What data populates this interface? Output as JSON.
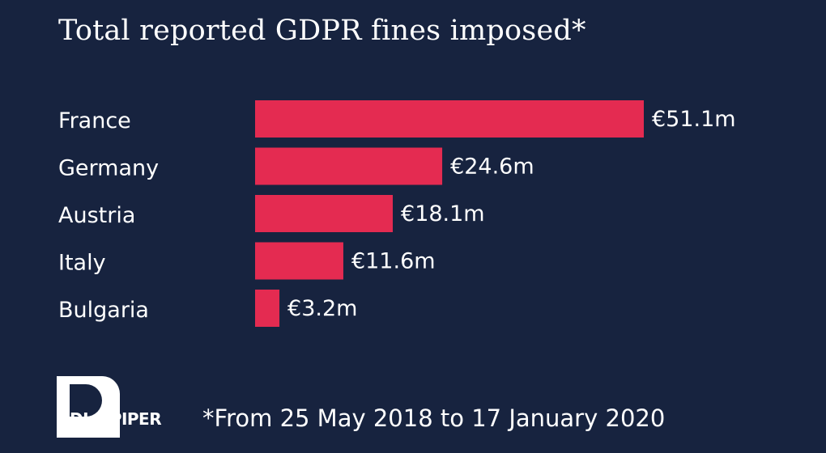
{
  "title": "Total reported GDPR fines imposed*",
  "footnote": "*From 25 May 2018 to 17 January 2020",
  "logo": {
    "text": "DLA PIPER",
    "icon": "dla-piper-logo-icon"
  },
  "colors": {
    "background": "#17233f",
    "bar": "#e42b51",
    "text": "#ffffff"
  },
  "chart_data": {
    "type": "bar",
    "orientation": "horizontal",
    "categories": [
      "France",
      "Germany",
      "Austria",
      "Italy",
      "Bulgaria"
    ],
    "values": [
      51.1,
      24.6,
      18.1,
      11.6,
      3.2
    ],
    "value_labels": [
      "€51.1m",
      "€24.6m",
      "€18.1m",
      "€11.6m",
      "€3.2m"
    ],
    "title": "Total reported GDPR fines imposed*",
    "xlabel": "",
    "ylabel": "",
    "grid": false,
    "legend": "none"
  }
}
